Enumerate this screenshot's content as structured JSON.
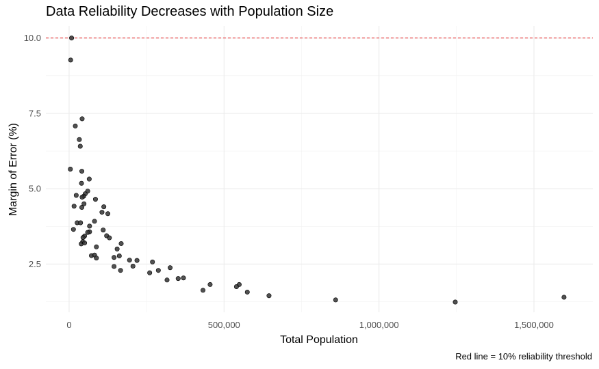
{
  "chart_data": {
    "type": "scatter",
    "title": "Data Reliability Decreases with Population Size",
    "xlabel": "Total Population",
    "ylabel": "Margin of Error (%)",
    "caption": "Red line = 10% reliability threshold",
    "xlim": [
      -75000,
      1690000
    ],
    "ylim": [
      0.9,
      10.4
    ],
    "x_ticks": [
      0,
      500000,
      1000000,
      1500000
    ],
    "x_tick_labels": [
      "0",
      "500,000",
      "1,000,000",
      "1,500,000"
    ],
    "y_ticks": [
      2.5,
      5.0,
      7.5,
      10.0
    ],
    "y_tick_labels": [
      "2.5",
      "5.0",
      "7.5",
      "10.0"
    ],
    "grid": true,
    "reference_line": {
      "y": 10,
      "style": "dashed",
      "color": "#e31a1c"
    },
    "point_color": "#333333",
    "points": [
      [
        8000,
        10.0
      ],
      [
        5000,
        9.27
      ],
      [
        42000,
        7.32
      ],
      [
        20000,
        7.08
      ],
      [
        33000,
        6.63
      ],
      [
        36000,
        6.41
      ],
      [
        4000,
        5.65
      ],
      [
        41000,
        5.58
      ],
      [
        65000,
        5.32
      ],
      [
        40000,
        5.18
      ],
      [
        60000,
        4.92
      ],
      [
        52000,
        4.83
      ],
      [
        47000,
        4.75
      ],
      [
        23000,
        4.78
      ],
      [
        42000,
        4.72
      ],
      [
        85000,
        4.65
      ],
      [
        16000,
        4.42
      ],
      [
        48000,
        4.5
      ],
      [
        41000,
        4.38
      ],
      [
        112000,
        4.4
      ],
      [
        106000,
        4.22
      ],
      [
        125000,
        4.17
      ],
      [
        82000,
        3.92
      ],
      [
        26000,
        3.87
      ],
      [
        37000,
        3.87
      ],
      [
        66000,
        3.76
      ],
      [
        14000,
        3.65
      ],
      [
        110000,
        3.63
      ],
      [
        66000,
        3.57
      ],
      [
        60000,
        3.55
      ],
      [
        121000,
        3.44
      ],
      [
        130000,
        3.37
      ],
      [
        50000,
        3.43
      ],
      [
        45000,
        3.38
      ],
      [
        44000,
        3.24
      ],
      [
        39000,
        3.17
      ],
      [
        50000,
        3.2
      ],
      [
        168000,
        3.18
      ],
      [
        88000,
        3.07
      ],
      [
        155000,
        3.0
      ],
      [
        72000,
        2.78
      ],
      [
        82000,
        2.8
      ],
      [
        88000,
        2.7
      ],
      [
        145000,
        2.72
      ],
      [
        162000,
        2.77
      ],
      [
        195000,
        2.63
      ],
      [
        219000,
        2.62
      ],
      [
        269000,
        2.57
      ],
      [
        145000,
        2.42
      ],
      [
        206000,
        2.43
      ],
      [
        326000,
        2.38
      ],
      [
        166000,
        2.29
      ],
      [
        288000,
        2.29
      ],
      [
        260000,
        2.21
      ],
      [
        352000,
        2.02
      ],
      [
        369000,
        2.04
      ],
      [
        316000,
        1.97
      ],
      [
        455000,
        1.82
      ],
      [
        549000,
        1.82
      ],
      [
        540000,
        1.75
      ],
      [
        432000,
        1.63
      ],
      [
        575000,
        1.57
      ],
      [
        645000,
        1.45
      ],
      [
        860000,
        1.31
      ],
      [
        1246000,
        1.24
      ],
      [
        1597000,
        1.4
      ]
    ]
  }
}
